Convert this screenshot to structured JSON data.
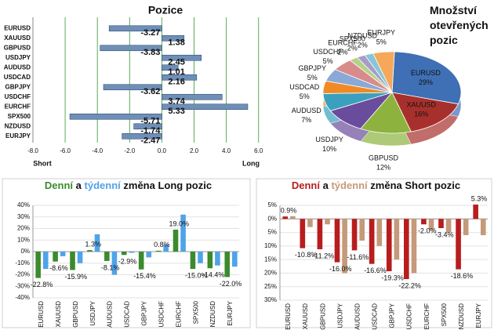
{
  "chart_data": [
    {
      "type": "hbar",
      "title": "Pozice",
      "categories": [
        "EURUSD",
        "XAUUSD",
        "GBPUSD",
        "USDJPY",
        "AUDUSD",
        "USDCAD",
        "GBPJPY",
        "USDCHF",
        "EURCHF",
        "SPX500",
        "NZDUSD",
        "EURJPY"
      ],
      "values": [
        -3.27,
        1.38,
        -3.83,
        2.45,
        1.01,
        2.16,
        -3.62,
        3.74,
        5.33,
        -5.71,
        -1.74,
        -2.47
      ],
      "color": "#6f8fb6",
      "xlim": [
        -8,
        6.5
      ],
      "xticks": [
        {
          "value": -8,
          "label": "-8.0"
        },
        {
          "value": -6,
          "label": "-6.0"
        },
        {
          "value": -4,
          "label": "-4.0"
        },
        {
          "value": -2,
          "label": "-2.0"
        },
        {
          "value": 0,
          "label": "0.0"
        },
        {
          "value": 2,
          "label": "2.0"
        },
        {
          "value": 4,
          "label": "4.0"
        },
        {
          "value": 6,
          "label": "6.0"
        }
      ],
      "grid": true,
      "grid_color": "#5aaa5a",
      "annotations": [
        "Short",
        "Long"
      ]
    },
    {
      "type": "pie",
      "title": "Množství otevřených pozic",
      "categories": [
        "EURUSD",
        "XAUUSD",
        "GBPUSD",
        "USDJPY",
        "AUDUSD",
        "USDCAD",
        "GBPJPY",
        "USDCHF",
        "EURCHF",
        "SPX500",
        "NZDUSD",
        "EURJPY"
      ],
      "values": [
        29,
        16,
        12,
        10,
        7,
        5,
        5,
        5,
        2,
        2,
        2,
        5
      ],
      "value_labels": [
        "29%",
        "16%",
        "12%",
        "10%",
        "7%",
        "5%",
        "5%",
        "5%",
        "2%",
        "2%",
        "2%",
        "5%"
      ],
      "colors": [
        "#3f6fb5",
        "#a8302c",
        "#8db33e",
        "#6a4c9c",
        "#3aa0bd",
        "#f08a24",
        "#8aa8d8",
        "#d98b8b",
        "#b3d28a",
        "#a99bc8",
        "#86c6d6",
        "#f5a85a"
      ]
    },
    {
      "type": "bar",
      "title_connector": "a",
      "title_rest": "změna Long pozic",
      "categories": [
        "EURUSD",
        "XAUUSD",
        "GBPUSD",
        "USDJPY",
        "AUDUSD",
        "USDCAD",
        "GBPJPY",
        "USDCHF",
        "EURCHF",
        "SPX500",
        "NZDUSD",
        "EURJPY"
      ],
      "series": [
        {
          "name": "Denní",
          "color": "#3b8a2e",
          "values": [
            -22.8,
            -8.6,
            -15.9,
            1.3,
            -8.1,
            -2.9,
            -15.4,
            0.8,
            19.0,
            -15.0,
            -14.4,
            -22.0
          ],
          "value_labels": [
            "-22.8%",
            "-8.6%",
            "-15.9%",
            "1.3%",
            "-8.1%",
            "-2.9%",
            "-15.4%",
            "0.8%",
            "19.0%",
            "-15.0%",
            "-14.4%",
            "-22.0%"
          ]
        },
        {
          "name": "týdenní",
          "color": "#4fa3e8",
          "values": [
            -15,
            -4,
            -10,
            15,
            -20,
            -1,
            -5,
            6,
            32,
            -10,
            -12,
            -13
          ]
        }
      ],
      "ylim": [
        -40,
        40
      ],
      "yticks": [
        {
          "value": -40,
          "label": "-40%"
        },
        {
          "value": -30,
          "label": "-30%"
        },
        {
          "value": -20,
          "label": "-20%"
        },
        {
          "value": -10,
          "label": "-10%"
        },
        {
          "value": 0,
          "label": "0%"
        },
        {
          "value": 10,
          "label": "10%"
        },
        {
          "value": 20,
          "label": "20%"
        },
        {
          "value": 30,
          "label": "30%"
        },
        {
          "value": 40,
          "label": "40%"
        }
      ],
      "grid": true
    },
    {
      "type": "bar",
      "title_connector": "a",
      "title_rest": "změna Short pozic",
      "categories": [
        "EURUSD",
        "XAUUSD",
        "GBPUSD",
        "USDJPY",
        "AUDUSD",
        "USDCAD",
        "GBPJPY",
        "USDCHF",
        "EURCHF",
        "SPX500",
        "NZDUSD",
        "EURJPY"
      ],
      "series": [
        {
          "name": "Denní",
          "color": "#b81d1d",
          "values": [
            0.9,
            -10.8,
            -11.2,
            -16.0,
            -11.6,
            -16.6,
            -19.3,
            -22.2,
            -2.0,
            -3.4,
            -18.6,
            5.3
          ],
          "value_labels": [
            "0.9%",
            "-10.8%",
            "-11.2%",
            "-16.0%",
            "-11.6%",
            "-16.6%",
            "-19.3%",
            "-22.2%",
            "-2.0%",
            "-3.4%",
            "-18.6%",
            "5.3%"
          ]
        },
        {
          "name": "týdenní",
          "color": "#c49a7a",
          "values": [
            1,
            -3,
            -2,
            -20,
            -8,
            -10,
            -15,
            -20,
            -4,
            -5,
            -6,
            -6
          ]
        }
      ],
      "ylim": [
        -30,
        5
      ],
      "yticks": [
        {
          "value": -30,
          "label": "30%"
        },
        {
          "value": -25,
          "label": "25%"
        },
        {
          "value": -20,
          "label": "20%"
        },
        {
          "value": -15,
          "label": "15%"
        },
        {
          "value": -10,
          "label": "10%"
        },
        {
          "value": -5,
          "label": "5%"
        },
        {
          "value": 0,
          "label": "0%"
        },
        {
          "value": 5,
          "label": "5%"
        }
      ],
      "grid": true
    }
  ]
}
